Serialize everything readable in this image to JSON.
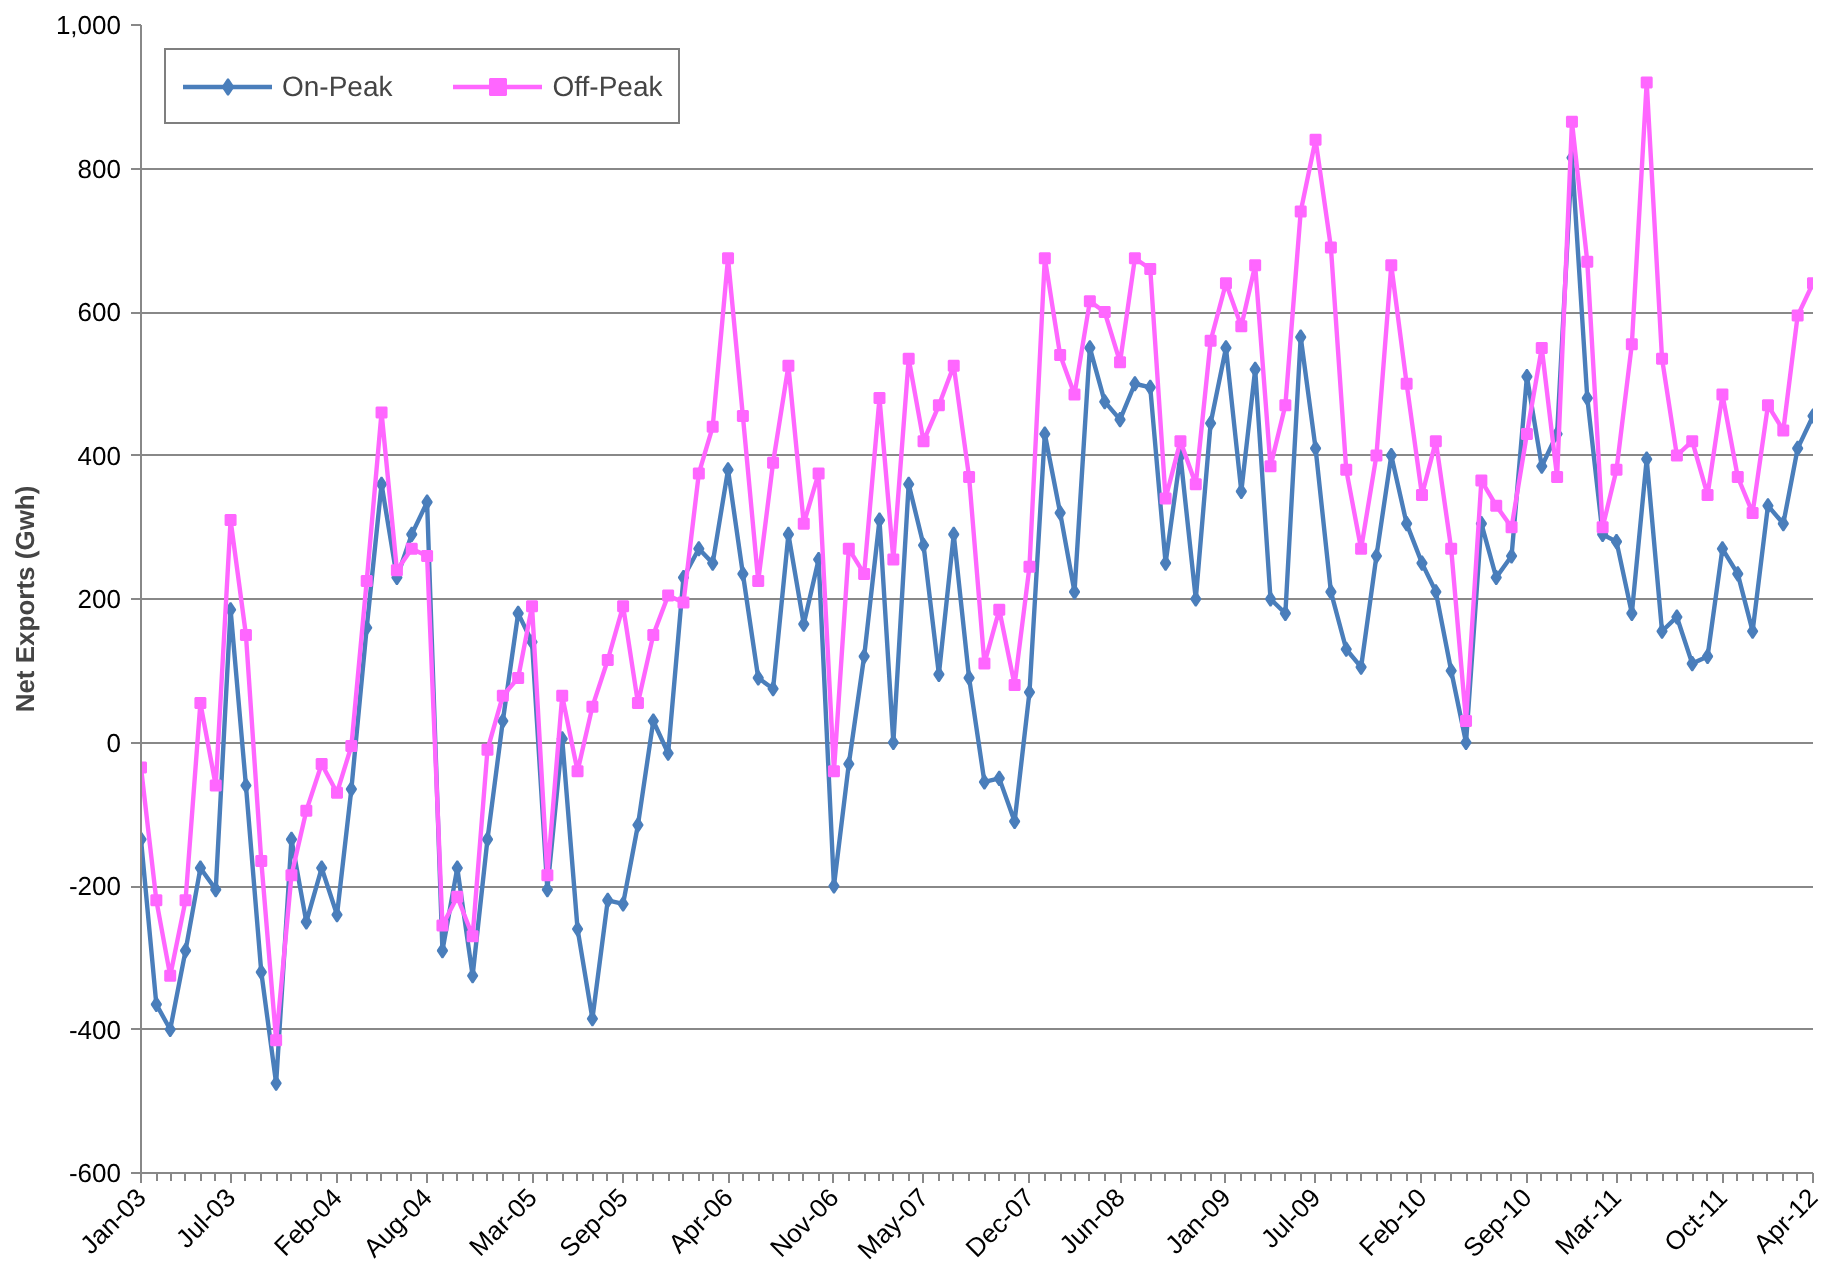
{
  "chart_data": {
    "type": "line",
    "ylabel": "Net Exports (Gwh)",
    "x": [
      "2003-01",
      "2003-02",
      "2003-03",
      "2003-04",
      "2003-05",
      "2003-06",
      "2003-07",
      "2003-08",
      "2003-09",
      "2003-10",
      "2003-11",
      "2003-12",
      "2004-01",
      "2004-02",
      "2004-03",
      "2004-04",
      "2004-05",
      "2004-06",
      "2004-07",
      "2004-08",
      "2004-09",
      "2004-10",
      "2004-11",
      "2004-12",
      "2005-01",
      "2005-02",
      "2005-03",
      "2005-04",
      "2005-05",
      "2005-06",
      "2005-07",
      "2005-08",
      "2005-09",
      "2005-10",
      "2005-11",
      "2005-12",
      "2006-01",
      "2006-02",
      "2006-03",
      "2006-04",
      "2006-05",
      "2006-06",
      "2006-07",
      "2006-08",
      "2006-09",
      "2006-10",
      "2006-11",
      "2006-12",
      "2007-01",
      "2007-02",
      "2007-03",
      "2007-04",
      "2007-05",
      "2007-06",
      "2007-07",
      "2007-08",
      "2007-09",
      "2007-10",
      "2007-11",
      "2007-12",
      "2008-01",
      "2008-02",
      "2008-03",
      "2008-04",
      "2008-05",
      "2008-06",
      "2008-07",
      "2008-08",
      "2008-09",
      "2008-10",
      "2008-11",
      "2008-12",
      "2009-01",
      "2009-02",
      "2009-03",
      "2009-04",
      "2009-05",
      "2009-06",
      "2009-07",
      "2009-08",
      "2009-09",
      "2009-10",
      "2009-11",
      "2009-12",
      "2010-01",
      "2010-02",
      "2010-03",
      "2010-04",
      "2010-05",
      "2010-06",
      "2010-07",
      "2010-08",
      "2010-09",
      "2010-10",
      "2010-11",
      "2010-12",
      "2011-01",
      "2011-02",
      "2011-03",
      "2011-04",
      "2011-05",
      "2011-06",
      "2011-07",
      "2011-08",
      "2011-09",
      "2011-10",
      "2011-11",
      "2011-12",
      "2012-01",
      "2012-02",
      "2012-03",
      "2012-04"
    ],
    "series": [
      {
        "name": "On-Peak",
        "color": "#4a7ebb",
        "marker": "diamond",
        "values": [
          -135,
          -365,
          -400,
          -290,
          -175,
          -205,
          185,
          -60,
          -320,
          -475,
          -135,
          -250,
          -175,
          -240,
          -65,
          160,
          360,
          230,
          290,
          335,
          -290,
          -175,
          -325,
          -135,
          30,
          180,
          140,
          -205,
          5,
          -260,
          -385,
          -220,
          -225,
          -115,
          30,
          -15,
          230,
          270,
          250,
          380,
          235,
          90,
          75,
          290,
          165,
          255,
          -200,
          -30,
          120,
          310,
          0,
          360,
          275,
          95,
          290,
          90,
          -55,
          -50,
          -110,
          70,
          430,
          320,
          210,
          550,
          475,
          450,
          500,
          495,
          250,
          400,
          200,
          445,
          550,
          350,
          520,
          200,
          180,
          565,
          410,
          210,
          130,
          105,
          260,
          400,
          305,
          250,
          210,
          100,
          0,
          305,
          230,
          260,
          510,
          385,
          430,
          815,
          480,
          290,
          280,
          180,
          395,
          155,
          175,
          110,
          120,
          270,
          235,
          155,
          330,
          305,
          410,
          455
        ]
      },
      {
        "name": "Off-Peak",
        "color": "#ff66ff",
        "marker": "square",
        "values": [
          -35,
          -220,
          -325,
          -220,
          55,
          -60,
          310,
          150,
          -165,
          -415,
          -185,
          -95,
          -30,
          -70,
          -5,
          225,
          460,
          240,
          270,
          260,
          -255,
          -215,
          -270,
          -10,
          65,
          90,
          190,
          -185,
          65,
          -40,
          50,
          115,
          190,
          55,
          150,
          205,
          195,
          375,
          440,
          675,
          455,
          225,
          390,
          525,
          305,
          375,
          -40,
          270,
          235,
          480,
          255,
          535,
          420,
          470,
          525,
          370,
          110,
          185,
          80,
          245,
          675,
          540,
          485,
          615,
          600,
          530,
          675,
          660,
          340,
          420,
          360,
          560,
          640,
          580,
          665,
          385,
          470,
          740,
          840,
          690,
          380,
          270,
          400,
          665,
          500,
          345,
          420,
          270,
          30,
          365,
          330,
          300,
          430,
          550,
          370,
          865,
          670,
          300,
          380,
          555,
          920,
          535,
          400,
          420,
          345,
          485,
          370,
          320,
          470,
          435,
          595,
          640
        ]
      }
    ],
    "xlim": [
      "2003-01",
      "2012-04"
    ],
    "xticks": [
      {
        "value": "2003-01",
        "label": "Jan-03"
      },
      {
        "value": "2003-07",
        "label": "Jul-03"
      },
      {
        "value": "2004-02",
        "label": "Feb-04"
      },
      {
        "value": "2004-08",
        "label": "Aug-04"
      },
      {
        "value": "2005-03",
        "label": "Mar-05"
      },
      {
        "value": "2005-09",
        "label": "Sep-05"
      },
      {
        "value": "2006-04",
        "label": "Apr-06"
      },
      {
        "value": "2006-11",
        "label": "Nov-06"
      },
      {
        "value": "2007-05",
        "label": "May-07"
      },
      {
        "value": "2007-12",
        "label": "Dec-07"
      },
      {
        "value": "2008-06",
        "label": "Jun-08"
      },
      {
        "value": "2009-01",
        "label": "Jan-09"
      },
      {
        "value": "2009-07",
        "label": "Jul-09"
      },
      {
        "value": "2010-02",
        "label": "Feb-10"
      },
      {
        "value": "2010-09",
        "label": "Sep-10"
      },
      {
        "value": "2011-03",
        "label": "Mar-11"
      },
      {
        "value": "2011-10",
        "label": "Oct-11"
      },
      {
        "value": "2012-04",
        "label": "Apr-12"
      }
    ],
    "ylim": [
      -600,
      1000
    ],
    "yticks": [
      -600,
      -400,
      -200,
      0,
      200,
      400,
      600,
      800,
      {
        "value": 1000,
        "label": "1,000"
      }
    ],
    "grid": "y",
    "legend": "top left",
    "line_style": "solid"
  }
}
